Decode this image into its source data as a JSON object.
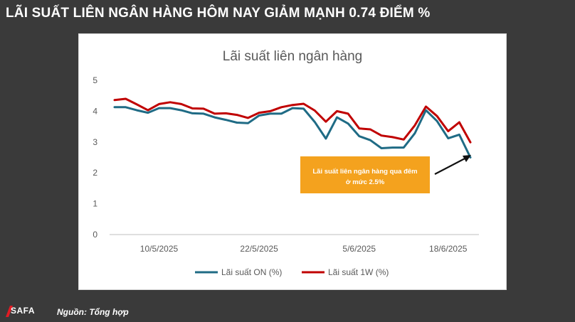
{
  "headline": "LÃI SUẤT LIÊN NGÂN HÀNG HÔM NAY GIẢM MẠNH 0.74 ĐIỂM %",
  "source": "Nguồn: Tổng hợp",
  "logo": {
    "text": "SAFA",
    "color": "#e31b23"
  },
  "chart_data": {
    "type": "line",
    "title": "Lãi suất liên ngân hàng",
    "xlabel": "",
    "ylabel": "",
    "ylim": [
      0,
      5
    ],
    "y_ticks": [
      0,
      1,
      2,
      3,
      4,
      5
    ],
    "x_tick_labels": [
      "10/5/2025",
      "22/5/2025",
      "5/6/2025",
      "18/6/2025"
    ],
    "x_tick_positions": [
      4,
      13,
      22,
      30
    ],
    "grid": false,
    "legend_position": "bottom",
    "series": [
      {
        "name": "Lãi suất ON (%)",
        "color": "#1f6b85",
        "values": [
          4.13,
          4.13,
          4.03,
          3.95,
          4.1,
          4.1,
          4.03,
          3.93,
          3.92,
          3.8,
          3.72,
          3.63,
          3.61,
          3.86,
          3.92,
          3.92,
          4.1,
          4.08,
          3.65,
          3.11,
          3.8,
          3.6,
          3.19,
          3.06,
          2.8,
          2.82,
          2.82,
          3.28,
          4.03,
          3.68,
          3.12,
          3.24,
          2.5
        ]
      },
      {
        "name": "Lãi suất 1W (%)",
        "color": "#c00000",
        "values": [
          4.36,
          4.4,
          4.22,
          4.03,
          4.23,
          4.29,
          4.23,
          4.09,
          4.08,
          3.92,
          3.93,
          3.88,
          3.78,
          3.95,
          4.0,
          4.13,
          4.2,
          4.24,
          4.02,
          3.66,
          4.0,
          3.92,
          3.44,
          3.41,
          3.21,
          3.16,
          3.08,
          3.54,
          4.15,
          3.84,
          3.35,
          3.64,
          2.99
        ]
      }
    ],
    "annotation": {
      "text_line1": "Lãi suất liên ngân hàng qua đêm",
      "text_line2": "ở mức 2.5%",
      "background": "#f4a21e"
    }
  }
}
